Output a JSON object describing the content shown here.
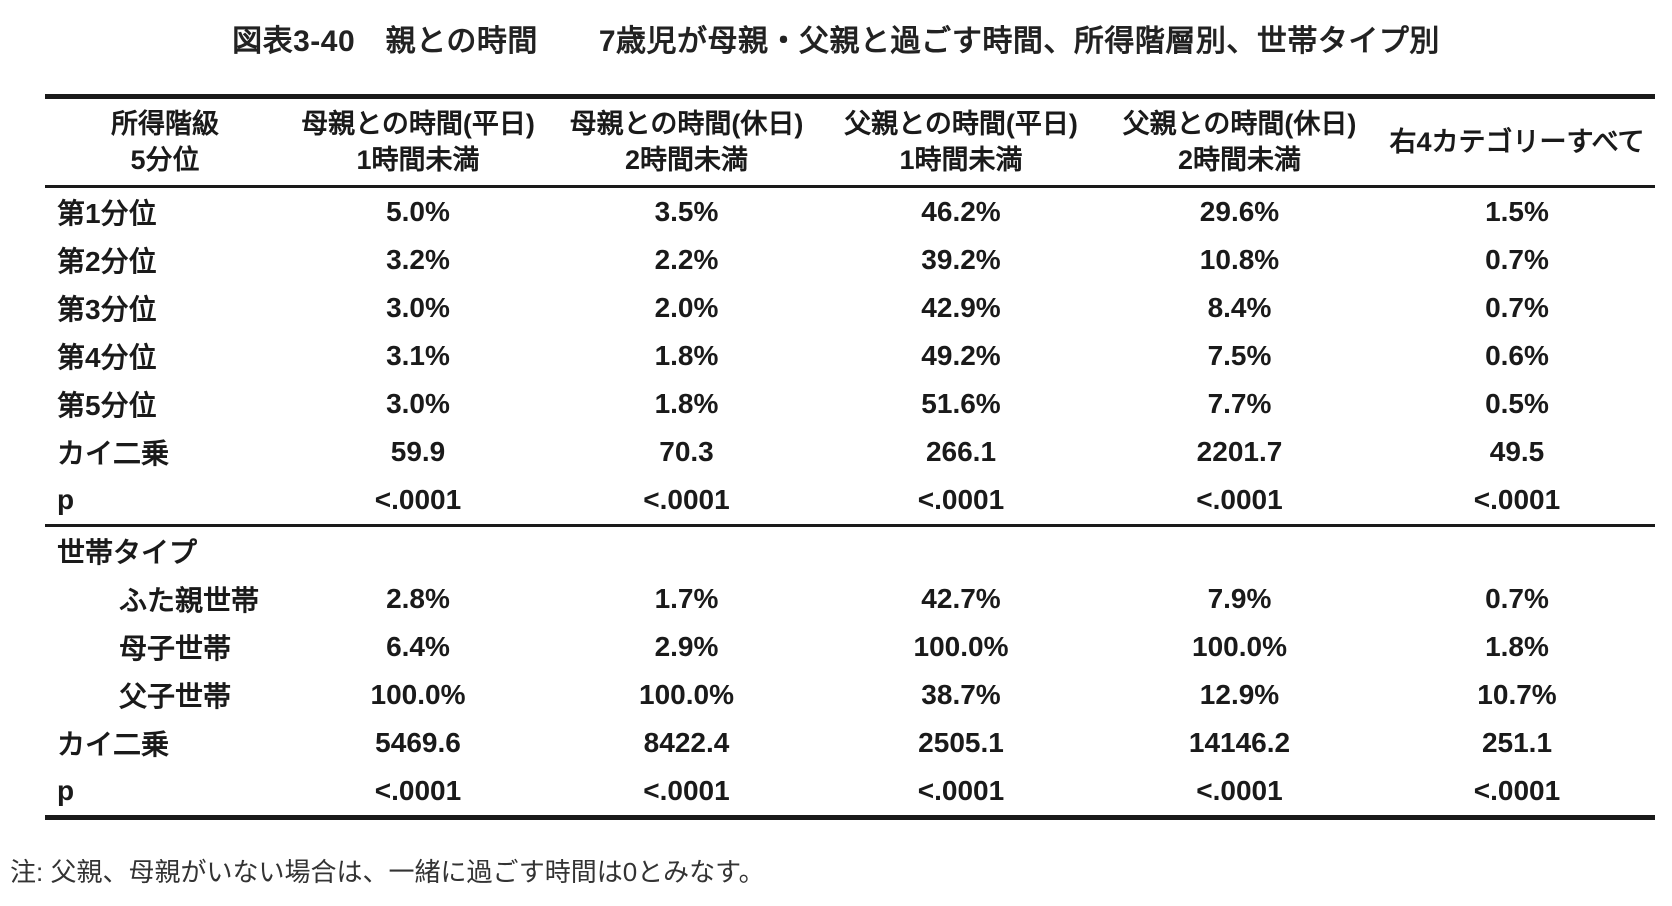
{
  "title": "図表3-40　親との時間　　7歳児が母親・父親と過ごす時間、所得階層別、世帯タイプ別",
  "footnote": "注: 父親、母親がいない場合は、一緒に過ごす時間は0とみなす。",
  "colors": {
    "text": "#1a1a1a",
    "border": "#1a1a1a",
    "footnote_text": "#333333",
    "background": "#ffffff"
  },
  "table": {
    "columns": [
      "所得階級\n5分位",
      "母親との時間(平日)\n1時間未満",
      "母親との時間(休日)\n2時間未満",
      "父親との時間(平日)\n1時間未満",
      "父親との時間(休日)\n2時間未満",
      "右4カテゴリーすべて"
    ],
    "sections": [
      {
        "name": "income-quintile",
        "rows": [
          {
            "label": "第1分位",
            "indent": false,
            "values": [
              "5.0%",
              "3.5%",
              "46.2%",
              "29.6%",
              "1.5%"
            ]
          },
          {
            "label": "第2分位",
            "indent": false,
            "values": [
              "3.2%",
              "2.2%",
              "39.2%",
              "10.8%",
              "0.7%"
            ]
          },
          {
            "label": "第3分位",
            "indent": false,
            "values": [
              "3.0%",
              "2.0%",
              "42.9%",
              "8.4%",
              "0.7%"
            ]
          },
          {
            "label": "第4分位",
            "indent": false,
            "values": [
              "3.1%",
              "1.8%",
              "49.2%",
              "7.5%",
              "0.6%"
            ]
          },
          {
            "label": "第5分位",
            "indent": false,
            "values": [
              "3.0%",
              "1.8%",
              "51.6%",
              "7.7%",
              "0.5%"
            ]
          },
          {
            "label": "カイ二乗",
            "indent": false,
            "values": [
              "59.9",
              "70.3",
              "266.1",
              "2201.7",
              "49.5"
            ]
          },
          {
            "label": "p",
            "indent": false,
            "values": [
              "<.0001",
              "<.0001",
              "<.0001",
              "<.0001",
              "<.0001"
            ]
          }
        ]
      },
      {
        "name": "household-type",
        "rows": [
          {
            "label": "世帯タイプ",
            "indent": false,
            "values": [
              "",
              "",
              "",
              "",
              ""
            ]
          },
          {
            "label": "ふた親世帯",
            "indent": true,
            "values": [
              "2.8%",
              "1.7%",
              "42.7%",
              "7.9%",
              "0.7%"
            ]
          },
          {
            "label": "母子世帯",
            "indent": true,
            "values": [
              "6.4%",
              "2.9%",
              "100.0%",
              "100.0%",
              "1.8%"
            ]
          },
          {
            "label": "父子世帯",
            "indent": true,
            "values": [
              "100.0%",
              "100.0%",
              "38.7%",
              "12.9%",
              "10.7%"
            ]
          },
          {
            "label": "カイ二乗",
            "indent": false,
            "values": [
              "5469.6",
              "8422.4",
              "2505.1",
              "14146.2",
              "251.1"
            ]
          },
          {
            "label": "p",
            "indent": false,
            "values": [
              "<.0001",
              "<.0001",
              "<.0001",
              "<.0001",
              "<.0001"
            ]
          }
        ]
      }
    ]
  },
  "chart_data": {
    "type": "table",
    "title": "図表3-40　親との時間　　7歳児が母親・父親と過ごす時間、所得階層別、世帯タイプ別",
    "columns": [
      "所得階級 5分位",
      "母親との時間(平日) 1時間未満",
      "母親との時間(休日) 2時間未満",
      "父親との時間(平日) 1時間未満",
      "父親との時間(休日) 2時間未満",
      "右4カテゴリーすべて"
    ],
    "rows": [
      [
        "第1分位",
        "5.0%",
        "3.5%",
        "46.2%",
        "29.6%",
        "1.5%"
      ],
      [
        "第2分位",
        "3.2%",
        "2.2%",
        "39.2%",
        "10.8%",
        "0.7%"
      ],
      [
        "第3分位",
        "3.0%",
        "2.0%",
        "42.9%",
        "8.4%",
        "0.7%"
      ],
      [
        "第4分位",
        "3.1%",
        "1.8%",
        "49.2%",
        "7.5%",
        "0.6%"
      ],
      [
        "第5分位",
        "3.0%",
        "1.8%",
        "51.6%",
        "7.7%",
        "0.5%"
      ],
      [
        "カイ二乗",
        "59.9",
        "70.3",
        "266.1",
        "2201.7",
        "49.5"
      ],
      [
        "p",
        "<.0001",
        "<.0001",
        "<.0001",
        "<.0001",
        "<.0001"
      ],
      [
        "世帯タイプ",
        "",
        "",
        "",
        "",
        ""
      ],
      [
        "ふた親世帯",
        "2.8%",
        "1.7%",
        "42.7%",
        "7.9%",
        "0.7%"
      ],
      [
        "母子世帯",
        "6.4%",
        "2.9%",
        "100.0%",
        "100.0%",
        "1.8%"
      ],
      [
        "父子世帯",
        "100.0%",
        "100.0%",
        "38.7%",
        "12.9%",
        "10.7%"
      ],
      [
        "カイ二乗",
        "5469.6",
        "8422.4",
        "2505.1",
        "14146.2",
        "251.1"
      ],
      [
        "p",
        "<.0001",
        "<.0001",
        "<.0001",
        "<.0001",
        "<.0001"
      ]
    ],
    "note": "注: 父親、母親がいない場合は、一緒に過ごす時間は0とみなす。"
  }
}
